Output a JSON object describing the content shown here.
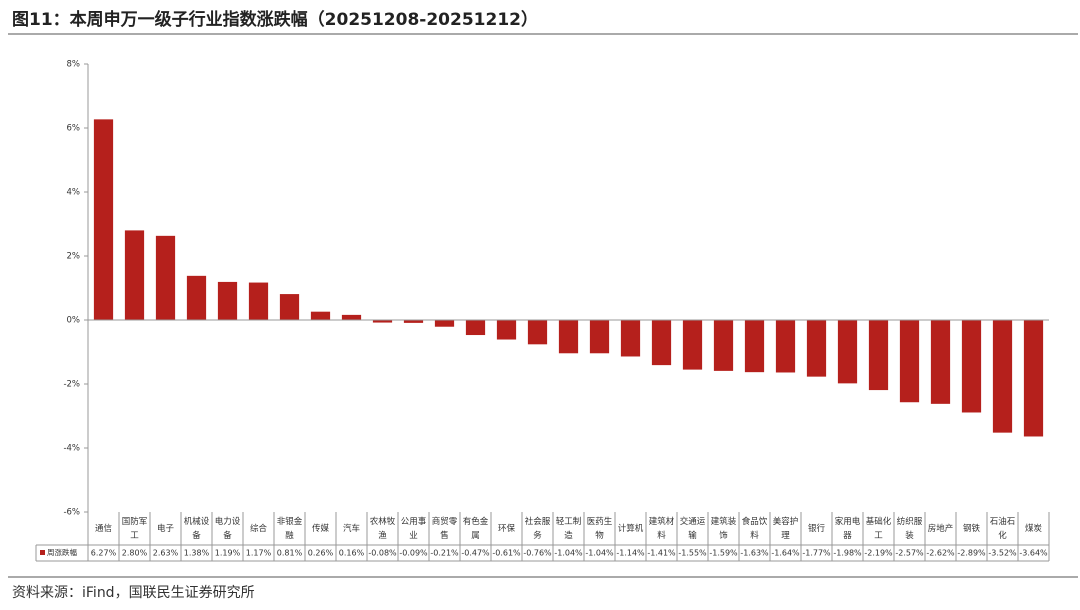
{
  "chart_data": {
    "type": "bar",
    "title": "图11：本周申万一级子行业指数涨跌幅（20251208-20251212）",
    "source": "资料来源：iFind，国联民生证券研究所",
    "categories": [
      "通信",
      "国防军工",
      "电子",
      "机械设备",
      "电力设备",
      "综合",
      "非银金融",
      "传媒",
      "汽车",
      "农林牧渔",
      "公用事业",
      "商贸零售",
      "有色金属",
      "环保",
      "社会服务",
      "轻工制造",
      "医药生物",
      "计算机",
      "建筑材料",
      "交通运输",
      "建筑装饰",
      "食品饮料",
      "美容护理",
      "银行",
      "家用电器",
      "基础化工",
      "纺织服装",
      "房地产",
      "钢铁",
      "石油石化",
      "煤炭"
    ],
    "series": [
      {
        "name": "周涨跌幅",
        "color": "#b5201c",
        "values": [
          6.27,
          2.8,
          2.63,
          1.38,
          1.19,
          1.17,
          0.81,
          0.26,
          0.16,
          -0.08,
          -0.09,
          -0.21,
          -0.47,
          -0.61,
          -0.76,
          -1.04,
          -1.04,
          -1.14,
          -1.41,
          -1.55,
          -1.59,
          -1.63,
          -1.64,
          -1.77,
          -1.98,
          -2.19,
          -2.57,
          -2.62,
          -2.89,
          -3.52,
          -3.64
        ],
        "value_labels": [
          "6.27%",
          "2.80%",
          "2.63%",
          "1.38%",
          "1.19%",
          "1.17%",
          "0.81%",
          "0.26%",
          "0.16%",
          "-0.08%",
          "-0.09%",
          "-0.21%",
          "-0.47%",
          "-0.61%",
          "-0.76%",
          "-1.04%",
          "-1.04%",
          "-1.14%",
          "-1.41%",
          "-1.55%",
          "-1.59%",
          "-1.63%",
          "-1.64%",
          "-1.77%",
          "-1.98%",
          "-2.19%",
          "-2.57%",
          "-2.62%",
          "-2.89%",
          "-3.52%",
          "-3.64%"
        ]
      }
    ],
    "ylim": [
      -6,
      8
    ],
    "yticks": [
      {
        "value": -6,
        "label": "-6%"
      },
      {
        "value": -4,
        "label": "-4%"
      },
      {
        "value": -2,
        "label": "-2%"
      },
      {
        "value": 0,
        "label": "0%"
      },
      {
        "value": 2,
        "label": "2%"
      },
      {
        "value": 4,
        "label": "4%"
      },
      {
        "value": 6,
        "label": "6%"
      },
      {
        "value": 8,
        "label": "8%"
      }
    ]
  }
}
